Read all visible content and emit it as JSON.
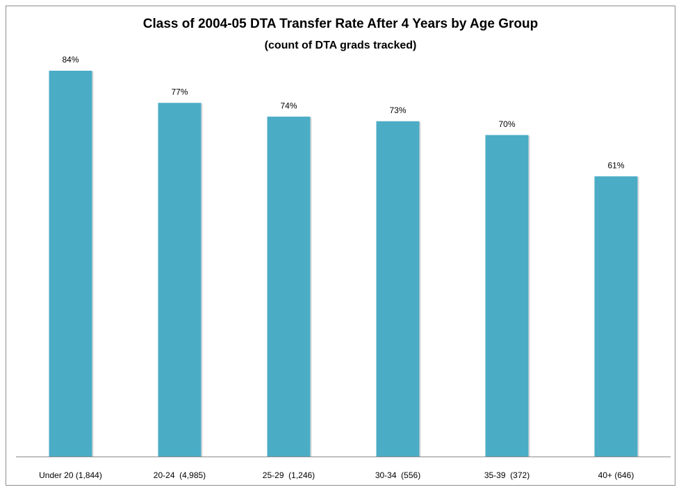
{
  "chart_data": {
    "type": "bar",
    "title": "Class of 2004-05  DTA Transfer Rate After 4 Years by Age Group",
    "subtitle": "(count of DTA grads tracked)",
    "categories": [
      "Under 20 (1,844)",
      "20-24  (4,985)",
      "25-29  (1,246)",
      "30-34  (556)",
      "35-39  (372)",
      "40+ (646)"
    ],
    "values": [
      84,
      77,
      74,
      73,
      70,
      61
    ],
    "value_labels": [
      "84%",
      "77%",
      "74%",
      "73%",
      "70%",
      "61%"
    ],
    "color": "#4bacc6"
  }
}
